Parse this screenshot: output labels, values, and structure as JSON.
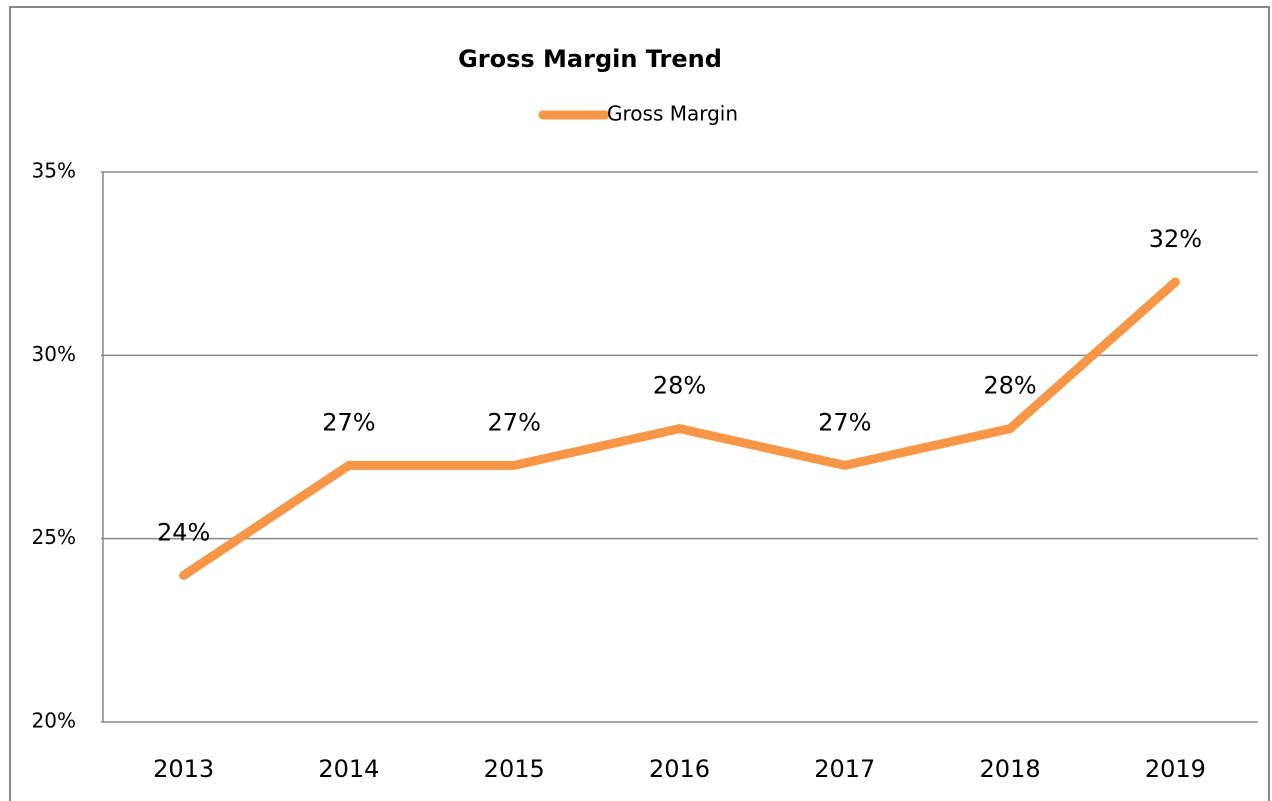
{
  "chart_data": {
    "type": "line",
    "title": "Gross Margin Trend",
    "categories": [
      "2013",
      "2014",
      "2015",
      "2016",
      "2017",
      "2018",
      "2019"
    ],
    "series": [
      {
        "name": "Gross Margin",
        "color": "#f79646",
        "values": [
          24,
          27,
          27,
          28,
          27,
          28,
          32
        ],
        "value_labels": [
          "24%",
          "27%",
          "27%",
          "28%",
          "27%",
          "28%",
          "32%"
        ]
      }
    ],
    "ylim": [
      20,
      35
    ],
    "yticks": [
      {
        "value": 20,
        "label": "20%"
      },
      {
        "value": 25,
        "label": "25%"
      },
      {
        "value": 30,
        "label": "30%"
      },
      {
        "value": 35,
        "label": "35%"
      }
    ],
    "grid": true,
    "legend": "top"
  }
}
